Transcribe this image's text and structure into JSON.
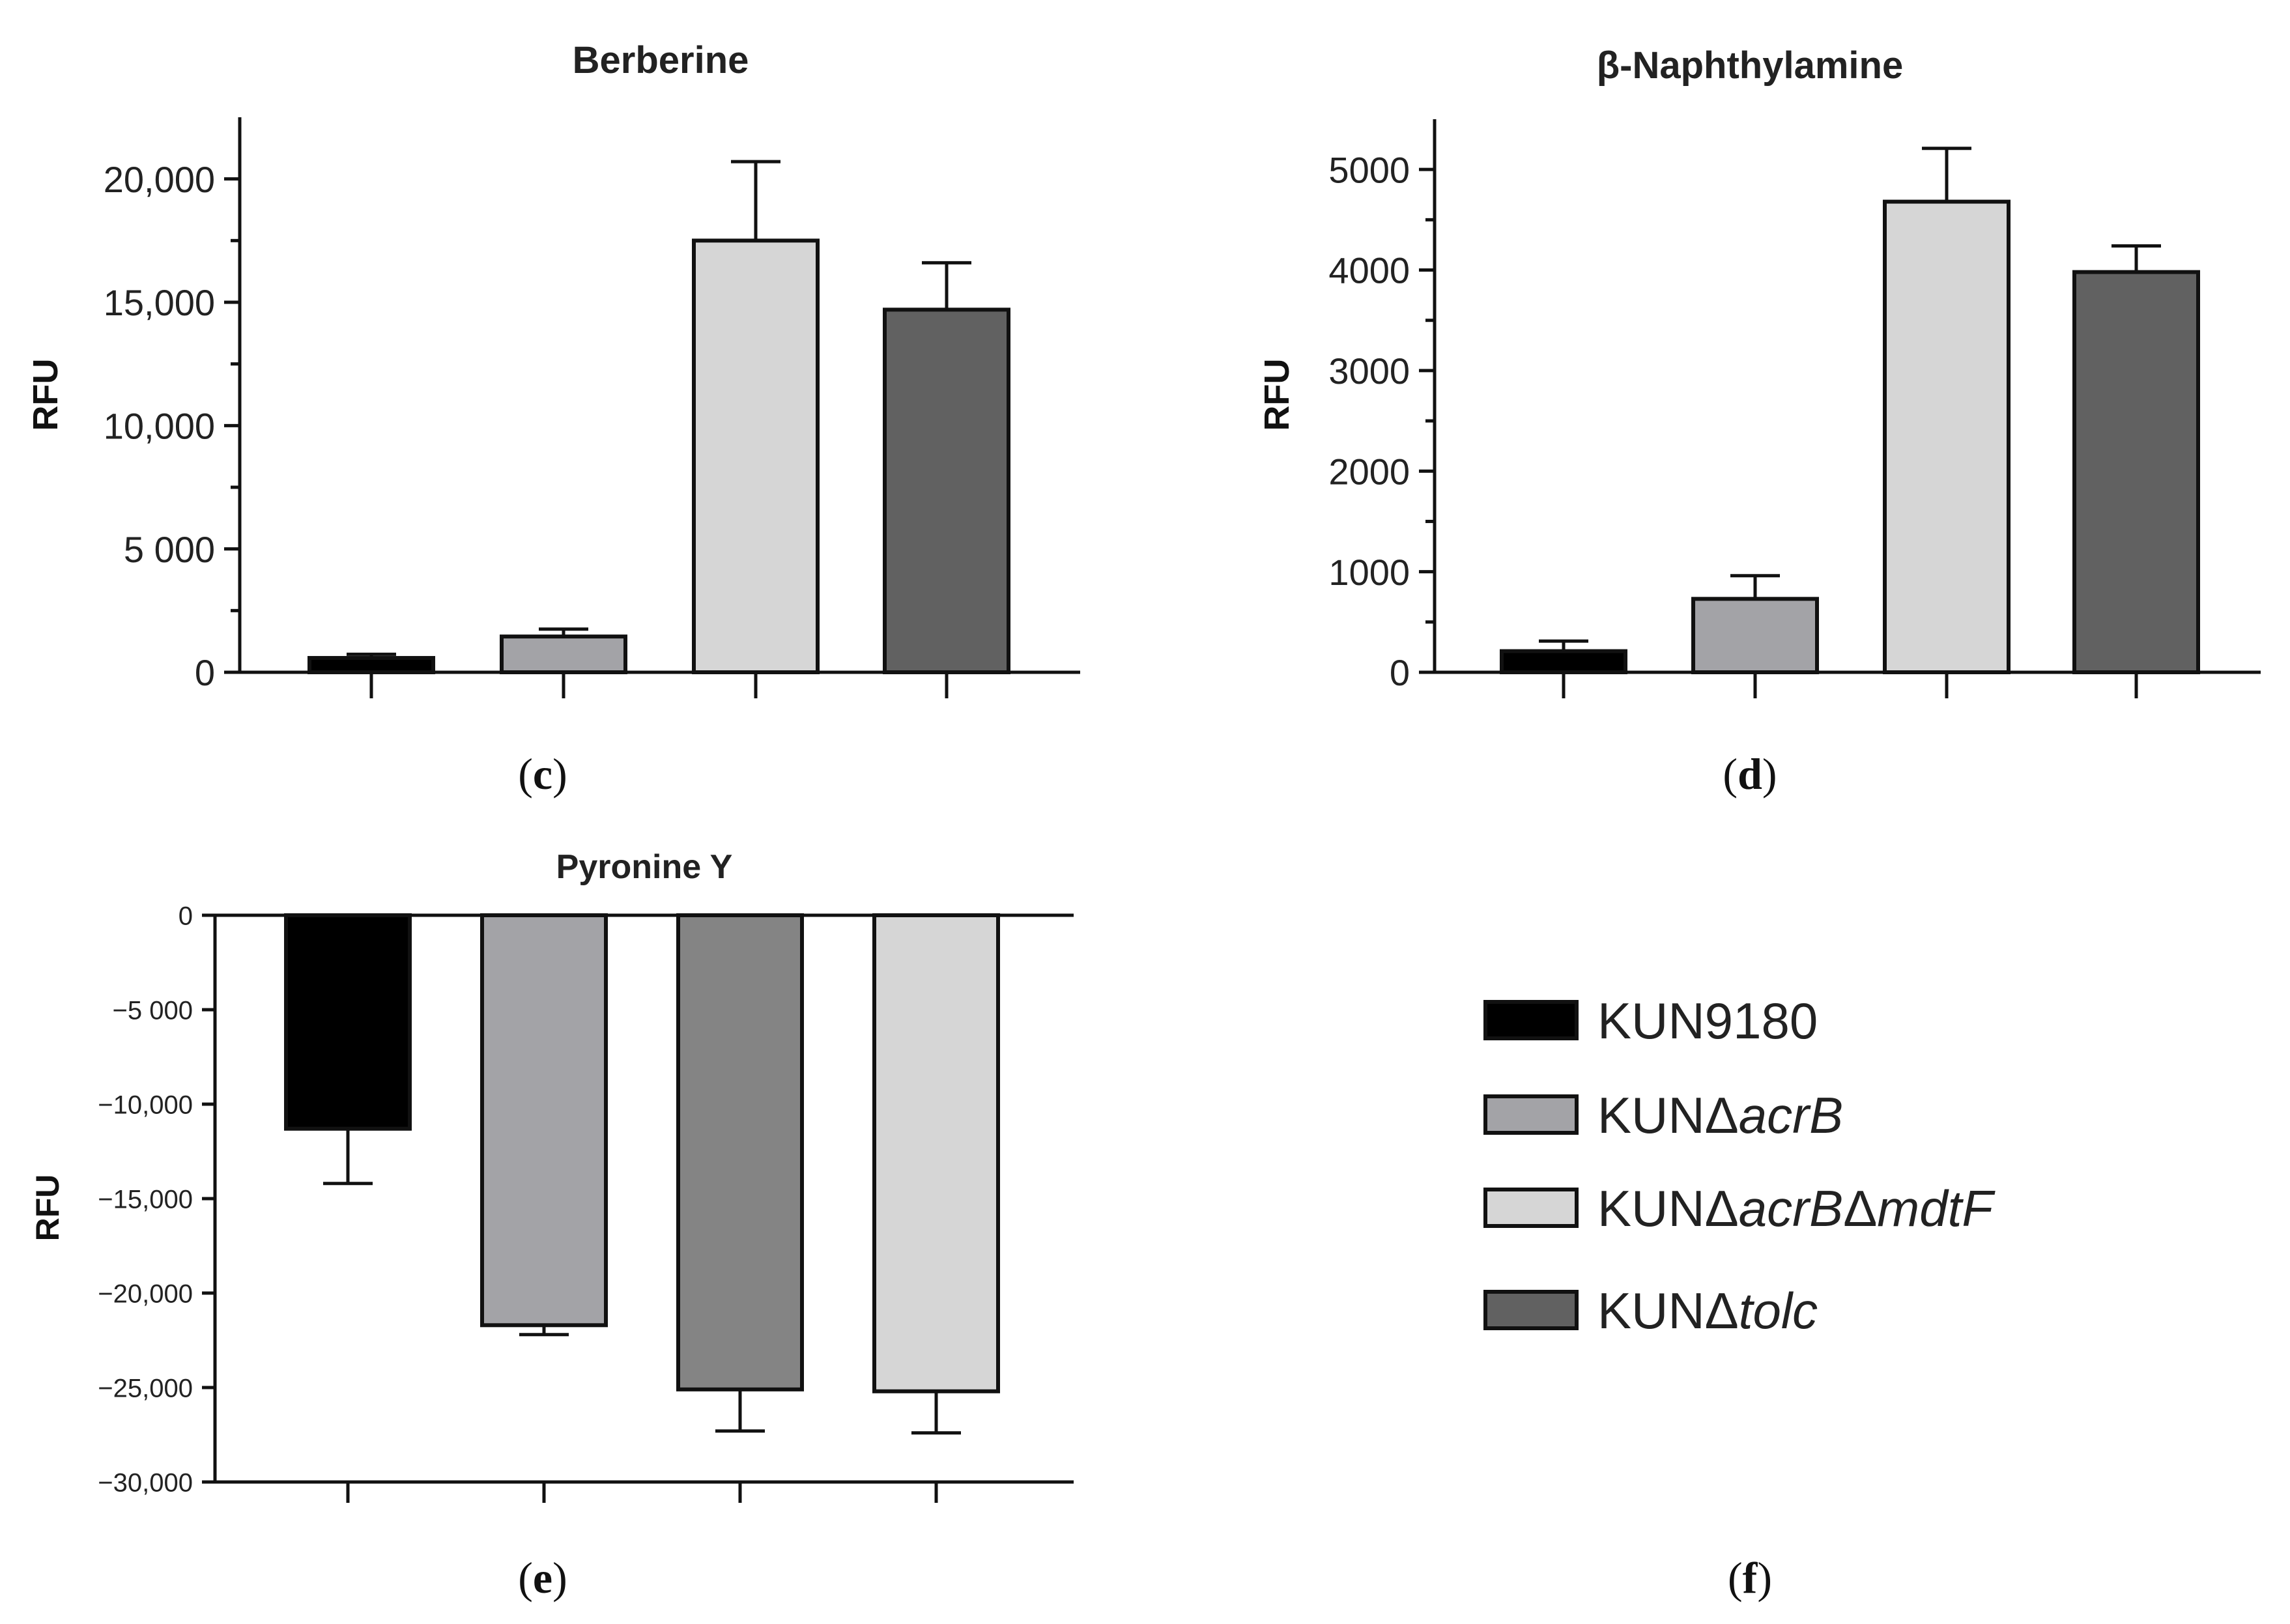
{
  "chart_data": [
    {
      "id": "c",
      "panel_label": "(c)",
      "panel_letter": "c",
      "type": "bar",
      "title": "Berberine",
      "xlabel": "",
      "ylabel": "RFU",
      "ylim": [
        0,
        22500
      ],
      "yticks": [
        0,
        5000,
        10000,
        15000,
        20000
      ],
      "ytick_labels": [
        "0",
        "5 000",
        "10,000",
        "15,000",
        "20,000"
      ],
      "minor_ticks": true,
      "categories": [
        "KUN9180",
        "KUNΔacrB",
        "KUNΔacrBΔmdtF",
        "KUNΔtolc"
      ],
      "values": [
        580,
        1450,
        17500,
        14700
      ],
      "errors": [
        150,
        300,
        3200,
        1900
      ],
      "colors": [
        "#000000",
        "#a3a3a7",
        "#d6d6d6",
        "#616161"
      ]
    },
    {
      "id": "d",
      "panel_label": "(d)",
      "panel_letter": "d",
      "type": "bar",
      "title": "β-Naphthylamine",
      "xlabel": "",
      "ylabel": "RFU",
      "ylim": [
        0,
        5500
      ],
      "yticks": [
        0,
        1000,
        2000,
        3000,
        4000,
        5000
      ],
      "ytick_labels": [
        "0",
        "1000",
        "2000",
        "3000",
        "4000",
        "5000"
      ],
      "minor_ticks": true,
      "categories": [
        "KUN9180",
        "KUNΔacrB",
        "KUNΔacrBΔmdtF",
        "KUNΔtolc"
      ],
      "values": [
        210,
        730,
        4680,
        3980
      ],
      "errors": [
        100,
        230,
        530,
        260
      ],
      "colors": [
        "#000000",
        "#a3a3a7",
        "#d6d6d6",
        "#616161"
      ]
    },
    {
      "id": "e",
      "panel_label": "(e)",
      "panel_letter": "e",
      "type": "bar",
      "title": "Pyronine Y",
      "xlabel": "",
      "ylabel": "RFU",
      "ylim": [
        -30000,
        0
      ],
      "yticks": [
        0,
        -5000,
        -10000,
        -15000,
        -20000,
        -25000,
        -30000
      ],
      "ytick_labels": [
        "0",
        "−5 000",
        "−10,000",
        "−15,000",
        "−20,000",
        "−25,000",
        "−30,000"
      ],
      "minor_ticks": false,
      "categories": [
        "KUN9180",
        "KUNΔacrB",
        "KUNΔacrBΔmdtF",
        "KUNΔtolc"
      ],
      "values": [
        -11300,
        -21700,
        -25100,
        -25200
      ],
      "errors": [
        2900,
        500,
        2200,
        2200
      ],
      "colors": [
        "#000000",
        "#a3a3a7",
        "#848484",
        "#d6d6d6"
      ]
    }
  ],
  "legend": {
    "panel_label": "(f)",
    "panel_letter": "f",
    "items": [
      {
        "prefix": "KUN9180",
        "italic": "",
        "mid": "",
        "italic2": "",
        "color": "#000000"
      },
      {
        "prefix": "KUNΔ",
        "italic": "acrB",
        "mid": "",
        "italic2": "",
        "color": "#a3a3a7"
      },
      {
        "prefix": "KUNΔ",
        "italic": "acrB",
        "mid": "Δ",
        "italic2": "mdtF",
        "color": "#d6d6d6"
      },
      {
        "prefix": "KUNΔ",
        "italic": "tolc",
        "mid": "",
        "italic2": "",
        "color": "#616161"
      }
    ]
  }
}
